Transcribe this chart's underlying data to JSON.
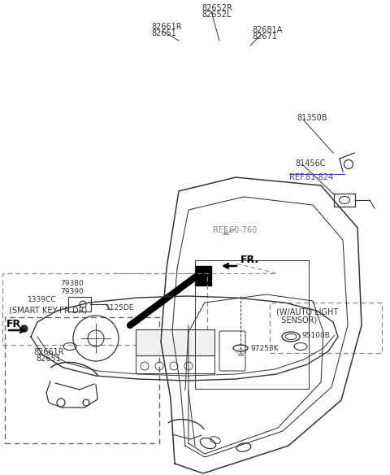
{
  "bg_color": "#ffffff",
  "line_color": "#333333",
  "text_color": "#333333",
  "ref_color": "#4444aa",
  "grey_color": "#888888",
  "labels": {
    "smart_key_box": "(SMART KEY-FR DR)",
    "l82661R": "82661R",
    "l82651": "82651",
    "l82652R": "82652R",
    "l82652L": "82652L",
    "l82661R_main": "82661R",
    "l82651_main": "82651",
    "l82681A": "82681A",
    "l82671": "82671",
    "l81350B": "81350B",
    "l81456C": "81456C",
    "ref81824": "REF.81-824",
    "ref60760": "REF.60-760",
    "l79380": "79380",
    "l79390": "79390",
    "l1339CC": "1339CC",
    "l1125DE": "1125DE",
    "fr1": "FR.",
    "fr2": "FR.",
    "l97253K": "97253K",
    "wauto_line1": "(W/AUTO LIGHT",
    "wauto_line2": "  SENSOR)",
    "l95100B": "95100B"
  }
}
